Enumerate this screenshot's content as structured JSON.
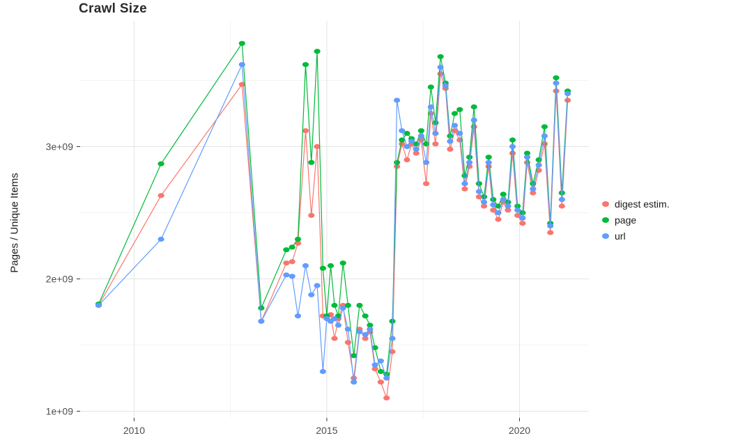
{
  "title": "Crawl Size",
  "legend": {
    "items": [
      {
        "label": "digest estim.",
        "color": "#F8766D"
      },
      {
        "label": "page",
        "color": "#00BA38"
      },
      {
        "label": "url",
        "color": "#619CFF"
      }
    ]
  },
  "colors": {
    "grid_major": "#e4e4e4",
    "grid_minor": "#f3f3f3",
    "tick_mark": "#333333",
    "tick_label": "#4d4d4d"
  },
  "chart_data": {
    "type": "line",
    "title": "Crawl Size",
    "xlabel": "",
    "ylabel": "Pages / Unique Items",
    "legend_position": "right",
    "grid": true,
    "xlim": [
      2008.6,
      2021.8
    ],
    "ylim": [
      950000000.0,
      3950000000.0
    ],
    "x_ticks": [
      2010,
      2015,
      2020
    ],
    "x_tick_labels": [
      "2010",
      "2015",
      "2020"
    ],
    "x_minor_ticks": [
      2012.5,
      2017.5
    ],
    "y_ticks": [
      1000000000.0,
      2000000000.0,
      3000000000.0
    ],
    "y_tick_labels": [
      "1e+09",
      "2e+09",
      "3e+09"
    ],
    "y_minor_ticks": [
      1500000000.0,
      2500000000.0,
      3500000000.0
    ],
    "x": [
      2009.08,
      2010.7,
      2012.8,
      2013.3,
      2013.95,
      2014.1,
      2014.25,
      2014.45,
      2014.6,
      2014.75,
      2014.9,
      2015.0,
      2015.1,
      2015.2,
      2015.3,
      2015.42,
      2015.55,
      2015.7,
      2015.85,
      2016.0,
      2016.12,
      2016.25,
      2016.4,
      2016.55,
      2016.7,
      2016.82,
      2016.95,
      2017.08,
      2017.2,
      2017.32,
      2017.45,
      2017.58,
      2017.7,
      2017.82,
      2017.95,
      2018.08,
      2018.2,
      2018.32,
      2018.45,
      2018.58,
      2018.7,
      2018.82,
      2018.95,
      2019.08,
      2019.2,
      2019.32,
      2019.45,
      2019.58,
      2019.7,
      2019.82,
      2019.95,
      2020.08,
      2020.2,
      2020.35,
      2020.5,
      2020.65,
      2020.8,
      2020.95,
      2021.1,
      2021.25
    ],
    "series": [
      {
        "name": "digest estim.",
        "color": "#F8766D",
        "values": [
          1800000000.0,
          2630000000.0,
          3470000000.0,
          1680000000.0,
          2120000000.0,
          2130000000.0,
          2270000000.0,
          3120000000.0,
          2480000000.0,
          3000000000.0,
          1720000000.0,
          1700000000.0,
          1730000000.0,
          1550000000.0,
          1700000000.0,
          1800000000.0,
          1520000000.0,
          1250000000.0,
          1620000000.0,
          1550000000.0,
          1600000000.0,
          1320000000.0,
          1220000000.0,
          1100000000.0,
          1450000000.0,
          2850000000.0,
          3020000000.0,
          2900000000.0,
          3020000000.0,
          2950000000.0,
          3050000000.0,
          2720000000.0,
          3250000000.0,
          3020000000.0,
          3550000000.0,
          3440000000.0,
          2980000000.0,
          3120000000.0,
          3050000000.0,
          2680000000.0,
          2850000000.0,
          3150000000.0,
          2620000000.0,
          2550000000.0,
          2850000000.0,
          2520000000.0,
          2450000000.0,
          2580000000.0,
          2520000000.0,
          2950000000.0,
          2480000000.0,
          2420000000.0,
          2880000000.0,
          2650000000.0,
          2820000000.0,
          3020000000.0,
          2350000000.0,
          3420000000.0,
          2550000000.0,
          3350000000.0
        ]
      },
      {
        "name": "page",
        "color": "#00BA38",
        "values": [
          1810000000.0,
          2870000000.0,
          3780000000.0,
          1780000000.0,
          2220000000.0,
          2240000000.0,
          2300000000.0,
          3620000000.0,
          2880000000.0,
          3720000000.0,
          2080000000.0,
          1720000000.0,
          2100000000.0,
          1800000000.0,
          1720000000.0,
          2120000000.0,
          1800000000.0,
          1420000000.0,
          1800000000.0,
          1720000000.0,
          1650000000.0,
          1480000000.0,
          1300000000.0,
          1280000000.0,
          1680000000.0,
          2880000000.0,
          3050000000.0,
          3100000000.0,
          3060000000.0,
          3020000000.0,
          3120000000.0,
          3020000000.0,
          3450000000.0,
          3180000000.0,
          3680000000.0,
          3480000000.0,
          3080000000.0,
          3250000000.0,
          3280000000.0,
          2780000000.0,
          2920000000.0,
          3300000000.0,
          2720000000.0,
          2620000000.0,
          2920000000.0,
          2600000000.0,
          2550000000.0,
          2640000000.0,
          2580000000.0,
          3050000000.0,
          2550000000.0,
          2500000000.0,
          2950000000.0,
          2720000000.0,
          2900000000.0,
          3150000000.0,
          2420000000.0,
          3520000000.0,
          2650000000.0,
          3420000000.0
        ]
      },
      {
        "name": "url",
        "color": "#619CFF",
        "values": [
          1800000000.0,
          2300000000.0,
          3620000000.0,
          1680000000.0,
          2030000000.0,
          2020000000.0,
          1720000000.0,
          2100000000.0,
          1880000000.0,
          1950000000.0,
          1300000000.0,
          1700000000.0,
          1680000000.0,
          1700000000.0,
          1650000000.0,
          1780000000.0,
          1620000000.0,
          1220000000.0,
          1600000000.0,
          1580000000.0,
          1620000000.0,
          1350000000.0,
          1380000000.0,
          1250000000.0,
          1550000000.0,
          3350000000.0,
          3120000000.0,
          3000000000.0,
          3040000000.0,
          2980000000.0,
          3080000000.0,
          2880000000.0,
          3300000000.0,
          3100000000.0,
          3600000000.0,
          3460000000.0,
          3040000000.0,
          3160000000.0,
          3100000000.0,
          2720000000.0,
          2880000000.0,
          3200000000.0,
          2660000000.0,
          2580000000.0,
          2880000000.0,
          2560000000.0,
          2500000000.0,
          2600000000.0,
          2550000000.0,
          3000000000.0,
          2520000000.0,
          2460000000.0,
          2920000000.0,
          2680000000.0,
          2860000000.0,
          3080000000.0,
          2400000000.0,
          3480000000.0,
          2600000000.0,
          3400000000.0
        ]
      }
    ]
  }
}
